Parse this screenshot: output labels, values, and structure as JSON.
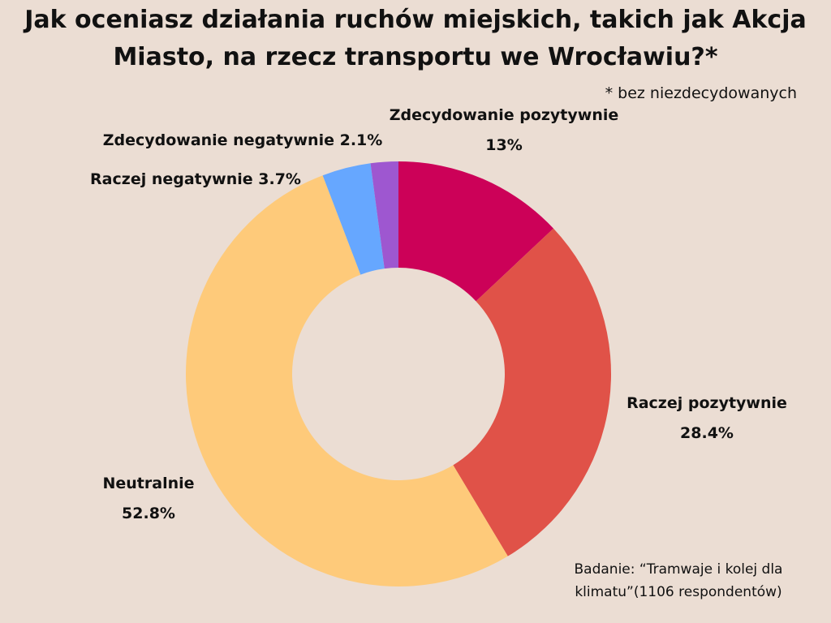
{
  "chart_data": {
    "type": "pie",
    "title_lines": [
      "Jak oceniasz działania ruchów miejskich, takich jak Akcja",
      "Miasto, na rzecz transportu we Wrocławiu?*"
    ],
    "note": "* bez niezdecydowanych",
    "source_lines": [
      "Badanie: “Tramwaje i kolej dla",
      "klimatu”(1106 respondentów)"
    ],
    "slices": [
      {
        "label": "Zdecydowanie pozytywnie",
        "value": 13,
        "display": "13%",
        "color": "#CC0158"
      },
      {
        "label": "Raczej pozytywnie",
        "value": 28.4,
        "display": "28.4%",
        "color": "#E05248"
      },
      {
        "label": "Neutralnie",
        "value": 52.8,
        "display": "52.8%",
        "color": "#FECA7A"
      },
      {
        "label": "Raczej negatywnie",
        "value": 3.7,
        "display": "3.7%",
        "color": "#66A7FF"
      },
      {
        "label": "Zdecydowanie negatywnie",
        "value": 2.1,
        "display": "2.1%",
        "color": "#9E57D0"
      }
    ]
  }
}
